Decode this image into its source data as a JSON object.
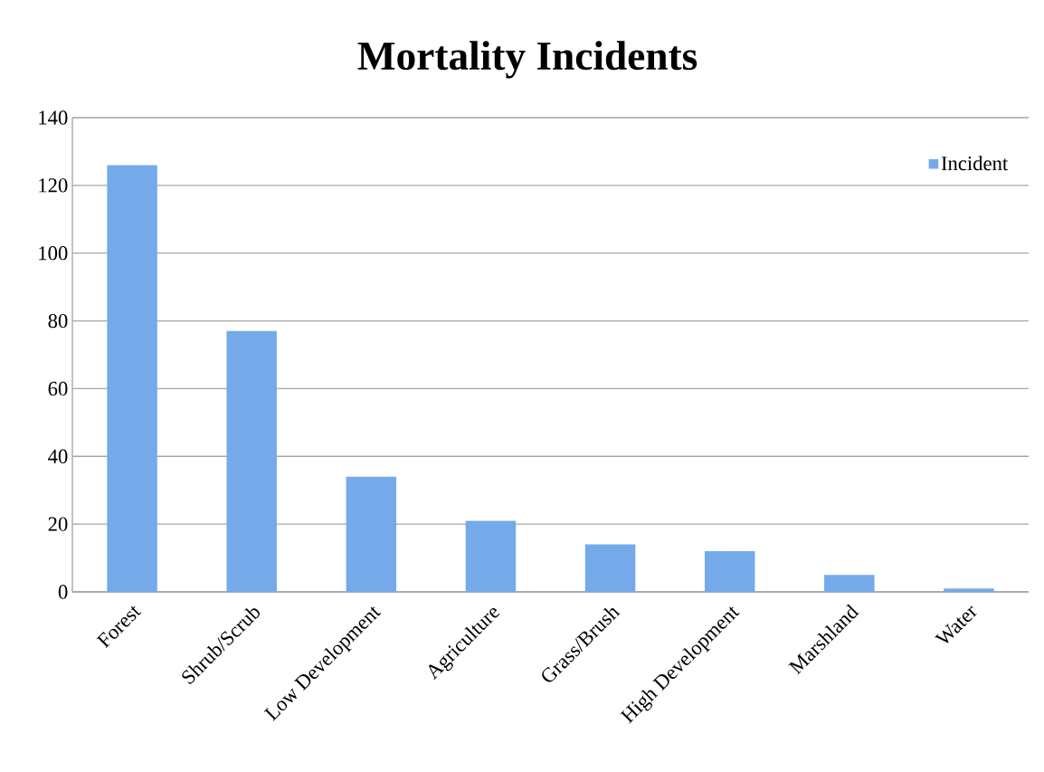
{
  "chart_data": {
    "type": "bar",
    "title": "Mortality Incidents",
    "categories": [
      "Forest",
      "Shrub/Scrub",
      "Low Development",
      "Agriculture",
      "Grass/Brush",
      "High Development",
      "Marshland",
      "Water"
    ],
    "series": [
      {
        "name": "Incident",
        "color": "#74aaea",
        "values": [
          126,
          77,
          34,
          21,
          14,
          12,
          5,
          1
        ]
      }
    ],
    "ylim": [
      0,
      140
    ],
    "yticks": [
      0,
      20,
      40,
      60,
      80,
      100,
      120,
      140
    ],
    "grid": "y",
    "legend": "top right"
  }
}
